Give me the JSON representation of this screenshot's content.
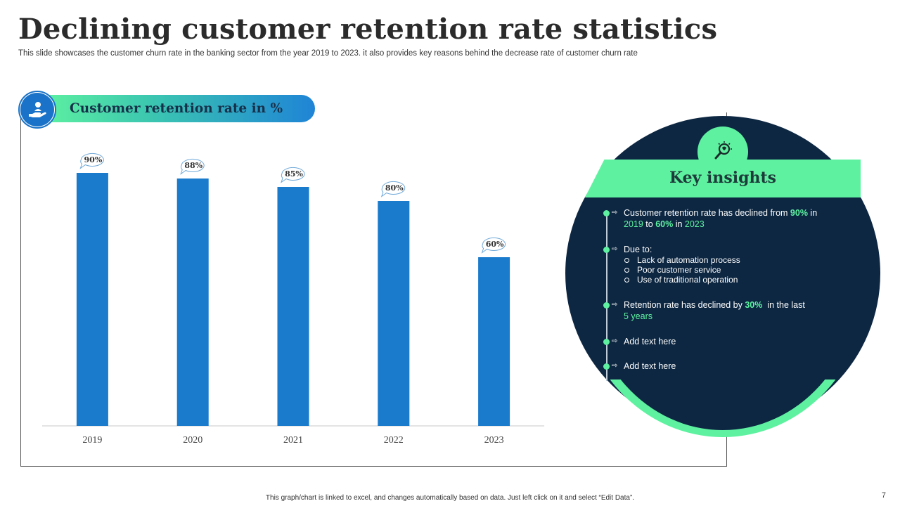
{
  "slide": {
    "title": "Declining customer retention rate statistics",
    "subtitle": "This slide showcases the customer churn rate in the banking sector from the year 2019 to 2023. it also provides key reasons behind the decrease rate of customer churn rate",
    "footer_note": "This graph/chart is linked to excel, and changes automatically based on data. Just left click on it and select “Edit Data”.",
    "page_number": "7"
  },
  "chart_header": {
    "title": "Customer retention rate in %",
    "icon": "hand-with-person-icon"
  },
  "chart_data": {
    "type": "bar",
    "title": "Customer retention rate in %",
    "categories": [
      "2019",
      "2020",
      "2021",
      "2022",
      "2023"
    ],
    "values": [
      90,
      88,
      85,
      80,
      60
    ],
    "data_labels": [
      "90%",
      "88%",
      "85%",
      "80%",
      "60%"
    ],
    "xlabel": "",
    "ylabel": "",
    "ylim": [
      0,
      100
    ],
    "grid": false,
    "bar_color": "#1a7acc"
  },
  "insights": {
    "title": "Key insights",
    "icon": "lightbulb-magnifier-icon",
    "items": [
      {
        "parts": [
          {
            "text": "Customer retention rate has declined from ",
            "hl": false
          },
          {
            "text": "90%",
            "hl": true
          },
          {
            "text": " in",
            "hl": false
          }
        ],
        "line2": [
          {
            "text": "2019",
            "hl": "n"
          },
          {
            "text": " to ",
            "hl": false
          },
          {
            "text": "60%",
            "hl": true
          },
          {
            "text": " in ",
            "hl": false
          },
          {
            "text": "2023",
            "hl": "n"
          }
        ]
      },
      {
        "label": "Due to:",
        "sub": [
          "Lack of automation process",
          "Poor customer service",
          "Use of traditional operation"
        ]
      },
      {
        "parts": [
          {
            "text": "Retention rate has declined by ",
            "hl": false
          },
          {
            "text": "30%",
            "hl": true
          },
          {
            "text": "  in the last",
            "hl": false
          }
        ],
        "line2": [
          {
            "text": "5 years",
            "hl": "n"
          }
        ]
      },
      {
        "label": "Add text here"
      },
      {
        "label": "Add text here"
      }
    ]
  },
  "colors": {
    "accent_green": "#5ef2a0",
    "navy": "#0d2742",
    "blue": "#1a7acc"
  }
}
